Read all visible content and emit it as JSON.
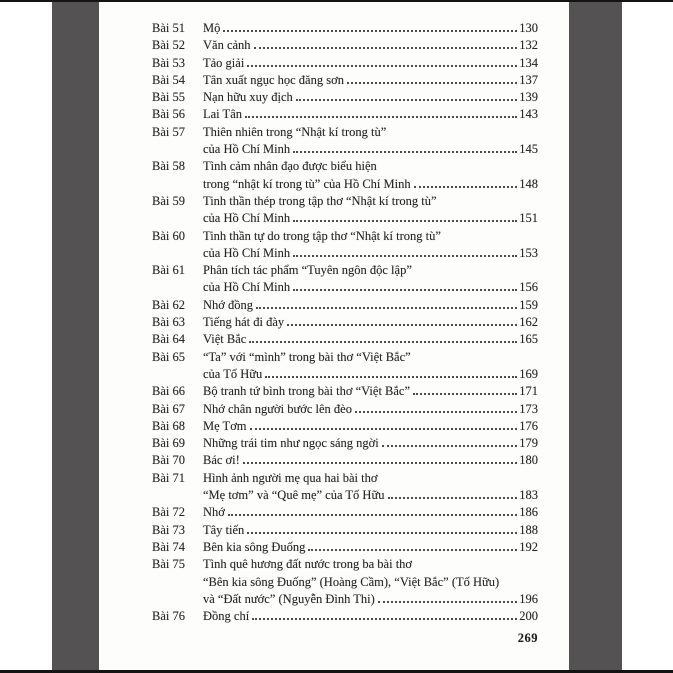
{
  "colors": {
    "photo_background_bar": "#545252",
    "photo_edge_line": "#141414",
    "page_background": "#fdfdfc",
    "text": "#262626"
  },
  "footer": {
    "page_number": "269"
  },
  "toc": {
    "entries": [
      {
        "label": "Bài 51",
        "lines": [
          "Mộ"
        ],
        "page": "130"
      },
      {
        "label": "Bài 52",
        "lines": [
          "Văn cảnh"
        ],
        "page": "132"
      },
      {
        "label": "Bài 53",
        "lines": [
          "Tảo giải"
        ],
        "page": "134"
      },
      {
        "label": "Bài 54",
        "lines": [
          "Tân xuất ngục học đăng sơn"
        ],
        "page": "137"
      },
      {
        "label": "Bài 55",
        "lines": [
          "Nạn hữu xuy địch"
        ],
        "page": "139"
      },
      {
        "label": "Bài 56",
        "lines": [
          "Lai Tân"
        ],
        "page": "143"
      },
      {
        "label": "Bài 57",
        "lines": [
          "Thiên nhiên trong “Nhật kí trong tù”",
          "của Hồ Chí Minh"
        ],
        "page": "145"
      },
      {
        "label": "Bài 58",
        "lines": [
          "Tình cảm nhân đạo được biểu hiện",
          "trong “nhật kí trong tù” của Hồ Chí Minh"
        ],
        "page": "148"
      },
      {
        "label": "Bài 59",
        "lines": [
          "Tinh thần thép trong tập thơ “Nhật kí trong tù”",
          "của Hồ Chí Minh"
        ],
        "page": "151"
      },
      {
        "label": "Bài 60",
        "lines": [
          "Tinh thần tự do trong tập thơ “Nhật kí trong tù”",
          "của Hồ Chí Minh"
        ],
        "page": "153"
      },
      {
        "label": "Bài 61",
        "lines": [
          "Phân tích tác phẩm “Tuyên ngôn độc lập”",
          "của Hồ Chí Minh"
        ],
        "page": "156"
      },
      {
        "label": "Bài 62",
        "lines": [
          "Nhớ đồng"
        ],
        "page": "159"
      },
      {
        "label": "Bài 63",
        "lines": [
          "Tiếng hát đi đày"
        ],
        "page": "162"
      },
      {
        "label": "Bài 64",
        "lines": [
          "Việt Bắc"
        ],
        "page": "165"
      },
      {
        "label": "Bài 65",
        "lines": [
          "“Ta” với “mình” trong bài thơ “Việt Bắc”",
          "của Tố Hữu"
        ],
        "page": "169"
      },
      {
        "label": "Bài 66",
        "lines": [
          "Bộ tranh tứ bình trong bài thơ “Việt Bắc”"
        ],
        "page": "171"
      },
      {
        "label": "Bài 67",
        "lines": [
          "Nhớ chân người bước lên đèo"
        ],
        "page": "173"
      },
      {
        "label": "Bài 68",
        "lines": [
          "Mẹ Tơm"
        ],
        "page": "176"
      },
      {
        "label": "Bài 69",
        "lines": [
          "Những trái tim như ngọc sáng ngời"
        ],
        "page": "179"
      },
      {
        "label": "Bài 70",
        "lines": [
          "Bác ơi!"
        ],
        "page": "180"
      },
      {
        "label": "Bài 71",
        "lines": [
          "Hình ảnh người mẹ qua hai bài thơ",
          "“Mẹ tơm” và “Quê mẹ” của Tố Hữu"
        ],
        "page": "183"
      },
      {
        "label": "Bài 72",
        "lines": [
          "Nhớ"
        ],
        "page": "186"
      },
      {
        "label": "Bài 73",
        "lines": [
          "Tây tiến"
        ],
        "page": "188"
      },
      {
        "label": "Bài 74",
        "lines": [
          "Bên kia sông Đuống"
        ],
        "page": "192"
      },
      {
        "label": "Bài 75",
        "lines": [
          "Tình quê hương đất nước trong ba bài thơ",
          "“Bên kia sông Đuống” (Hoàng Cầm), “Việt Bắc” (Tố Hữu)",
          "và “Đất nước” (Nguyễn Đình Thi)"
        ],
        "page": "196"
      },
      {
        "label": "Bài 76",
        "lines": [
          "Đồng chí"
        ],
        "page": "200"
      }
    ]
  }
}
